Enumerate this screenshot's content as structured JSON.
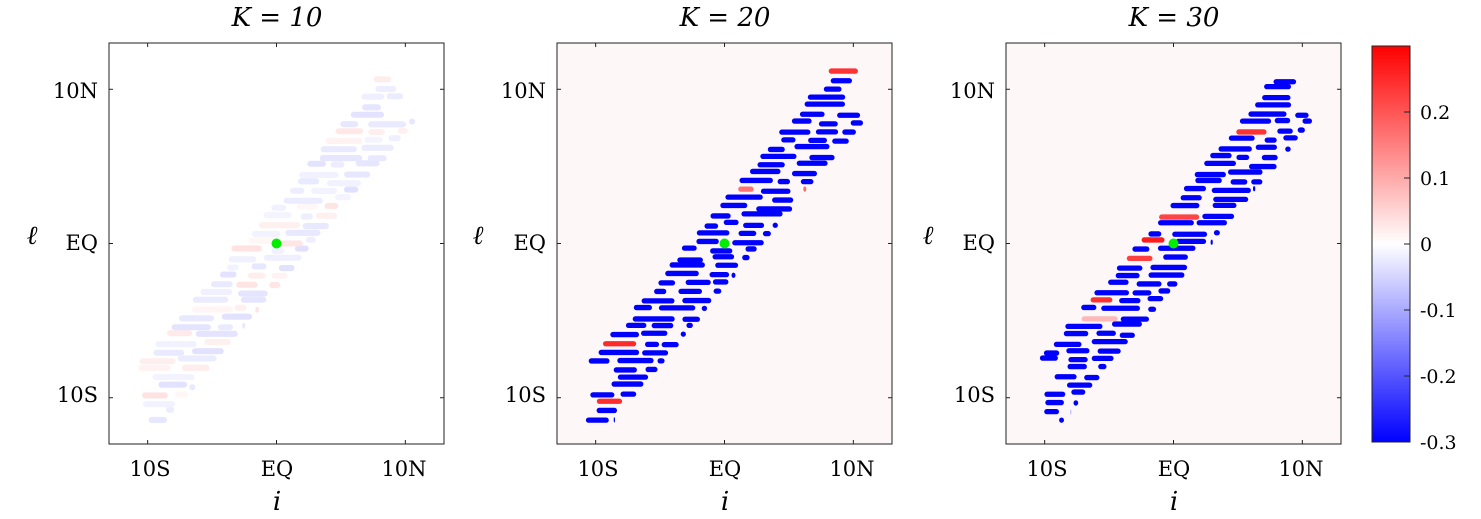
{
  "chart_data": [
    {
      "type": "heatmap",
      "title": "K = 10",
      "xlabel": "i",
      "ylabel": "ℓ",
      "xticks": [
        "10S",
        "EQ",
        "10N"
      ],
      "yticks": [
        "10N",
        "EQ",
        "10S"
      ],
      "xlim": [
        -13,
        13
      ],
      "ylim": [
        -13,
        13
      ],
      "intensity": 0.12,
      "bandwidth": 3.0,
      "extent": [
        -10,
        10
      ],
      "marker": {
        "x": 0,
        "y": 0,
        "color": "#00ee00"
      }
    },
    {
      "type": "heatmap",
      "title": "K = 20",
      "xlabel": "i",
      "ylabel": "ℓ",
      "xticks": [
        "10S",
        "EQ",
        "10N"
      ],
      "yticks": [
        "10N",
        "EQ",
        "10S"
      ],
      "xlim": [
        -13,
        13
      ],
      "ylim": [
        -13,
        13
      ],
      "intensity": 1.0,
      "bandwidth": 3.0,
      "extent": [
        -10,
        10
      ],
      "marker": {
        "x": 0,
        "y": 0,
        "color": "#00ee00"
      }
    },
    {
      "type": "heatmap",
      "title": "K = 30",
      "xlabel": "i",
      "ylabel": "ℓ",
      "xticks": [
        "10S",
        "EQ",
        "10N"
      ],
      "yticks": [
        "10N",
        "EQ",
        "10S"
      ],
      "xlim": [
        -13,
        13
      ],
      "ylim": [
        -13,
        13
      ],
      "intensity": 1.0,
      "bandwidth": 3.0,
      "extent": [
        -10,
        10
      ],
      "marker": {
        "x": 0,
        "y": 0,
        "color": "#00ee00"
      }
    }
  ],
  "colorbar": {
    "min": -0.3,
    "max": 0.3,
    "ticks": [
      {
        "value": 0.2,
        "label": "0.2"
      },
      {
        "value": 0.1,
        "label": "0.1"
      },
      {
        "value": 0,
        "label": "0"
      },
      {
        "value": -0.1,
        "label": "-0.1"
      },
      {
        "value": -0.2,
        "label": "-0.2"
      },
      {
        "value": -0.3,
        "label": "-0.3"
      }
    ],
    "colors": {
      "low": "#0000ff",
      "mid": "#ffffff",
      "high": "#ff0000"
    }
  }
}
